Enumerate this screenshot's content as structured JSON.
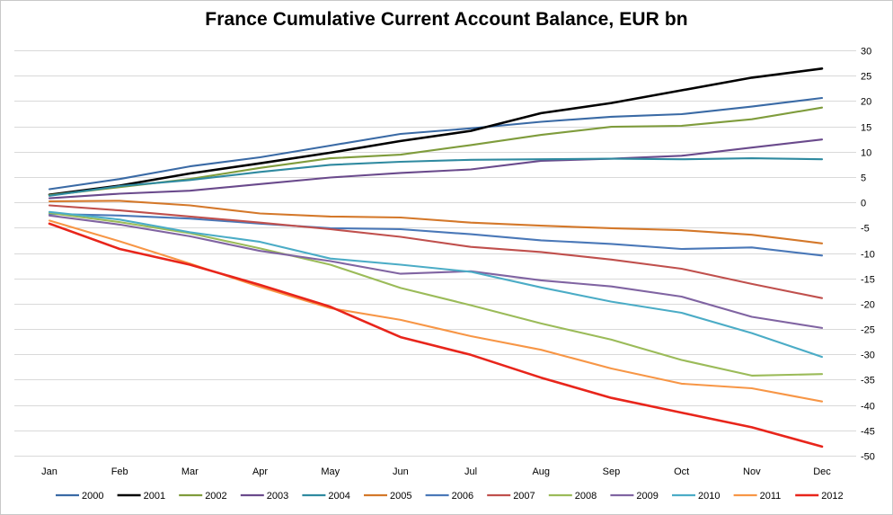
{
  "chart_data": {
    "type": "line",
    "title": "France Cumulative Current Account Balance, EUR bn",
    "xlabel": "",
    "ylabel": "",
    "categories": [
      "Jan",
      "Feb",
      "Mar",
      "Apr",
      "May",
      "Jun",
      "Jul",
      "Aug",
      "Sep",
      "Oct",
      "Nov",
      "Dec"
    ],
    "ylim": [
      -50,
      30
    ],
    "yticks": [
      30,
      25,
      20,
      15,
      10,
      5,
      0,
      -5,
      -10,
      -15,
      -20,
      -25,
      -30,
      -35,
      -40,
      -45,
      -50
    ],
    "y_axis_side": "right",
    "grid": "horizontal",
    "legend_position": "bottom",
    "series": [
      {
        "name": "2000",
        "color": "#3a6aa5",
        "values": [
          2.6,
          4.6,
          7.1,
          8.9,
          11.2,
          13.5,
          14.6,
          15.9,
          16.9,
          17.4,
          18.9,
          20.6
        ]
      },
      {
        "name": "2001",
        "color": "#000000",
        "values": [
          1.5,
          3.3,
          5.7,
          7.7,
          9.8,
          12.1,
          14.1,
          17.6,
          19.6,
          22.1,
          24.6,
          26.4
        ]
      },
      {
        "name": "2002",
        "color": "#7f9c3c",
        "values": [
          1.4,
          3.0,
          4.6,
          6.8,
          8.7,
          9.4,
          11.3,
          13.3,
          14.9,
          15.1,
          16.4,
          18.7
        ]
      },
      {
        "name": "2003",
        "color": "#6a4a8c",
        "values": [
          0.8,
          1.7,
          2.3,
          3.6,
          4.9,
          5.8,
          6.5,
          8.2,
          8.6,
          9.2,
          10.8,
          12.4
        ]
      },
      {
        "name": "2004",
        "color": "#2f8aa0",
        "values": [
          1.3,
          3.2,
          4.4,
          6.0,
          7.4,
          8.0,
          8.4,
          8.5,
          8.6,
          8.5,
          8.7,
          8.5
        ]
      },
      {
        "name": "2005",
        "color": "#d4782a",
        "values": [
          0.2,
          0.3,
          -0.6,
          -2.2,
          -2.8,
          -3.0,
          -4.0,
          -4.6,
          -5.1,
          -5.5,
          -6.4,
          -8.1
        ]
      },
      {
        "name": "2006",
        "color": "#4a78b8",
        "values": [
          -2.3,
          -2.6,
          -3.2,
          -4.2,
          -5.1,
          -5.3,
          -6.3,
          -7.5,
          -8.2,
          -9.2,
          -8.9,
          -10.5
        ]
      },
      {
        "name": "2007",
        "color": "#c0504d",
        "values": [
          -0.6,
          -1.6,
          -2.8,
          -4.0,
          -5.3,
          -6.8,
          -8.8,
          -9.8,
          -11.3,
          -13.1,
          -16.1,
          -18.9
        ]
      },
      {
        "name": "2008",
        "color": "#9bbb59",
        "values": [
          -2.1,
          -3.9,
          -6.1,
          -9.1,
          -12.3,
          -16.9,
          -20.3,
          -23.9,
          -27.1,
          -31.1,
          -34.2,
          -33.9
        ]
      },
      {
        "name": "2009",
        "color": "#8064a2",
        "values": [
          -2.6,
          -4.4,
          -6.7,
          -9.6,
          -11.6,
          -14.1,
          -13.6,
          -15.4,
          -16.6,
          -18.6,
          -22.6,
          -24.8
        ]
      },
      {
        "name": "2010",
        "color": "#4bacc6",
        "values": [
          -1.9,
          -3.4,
          -5.9,
          -7.8,
          -11.1,
          -12.3,
          -13.7,
          -16.8,
          -19.6,
          -21.8,
          -25.8,
          -30.5
        ]
      },
      {
        "name": "2011",
        "color": "#f79646",
        "values": [
          -3.6,
          -7.7,
          -12.1,
          -16.7,
          -20.9,
          -23.2,
          -26.4,
          -29.1,
          -32.8,
          -35.8,
          -36.7,
          -39.3
        ]
      },
      {
        "name": "2012",
        "color": "#e8251b",
        "values": [
          -4.2,
          -9.2,
          -12.3,
          -16.3,
          -20.6,
          -26.6,
          -30.1,
          -34.6,
          -38.6,
          -41.5,
          -44.4,
          -48.2
        ]
      }
    ]
  }
}
